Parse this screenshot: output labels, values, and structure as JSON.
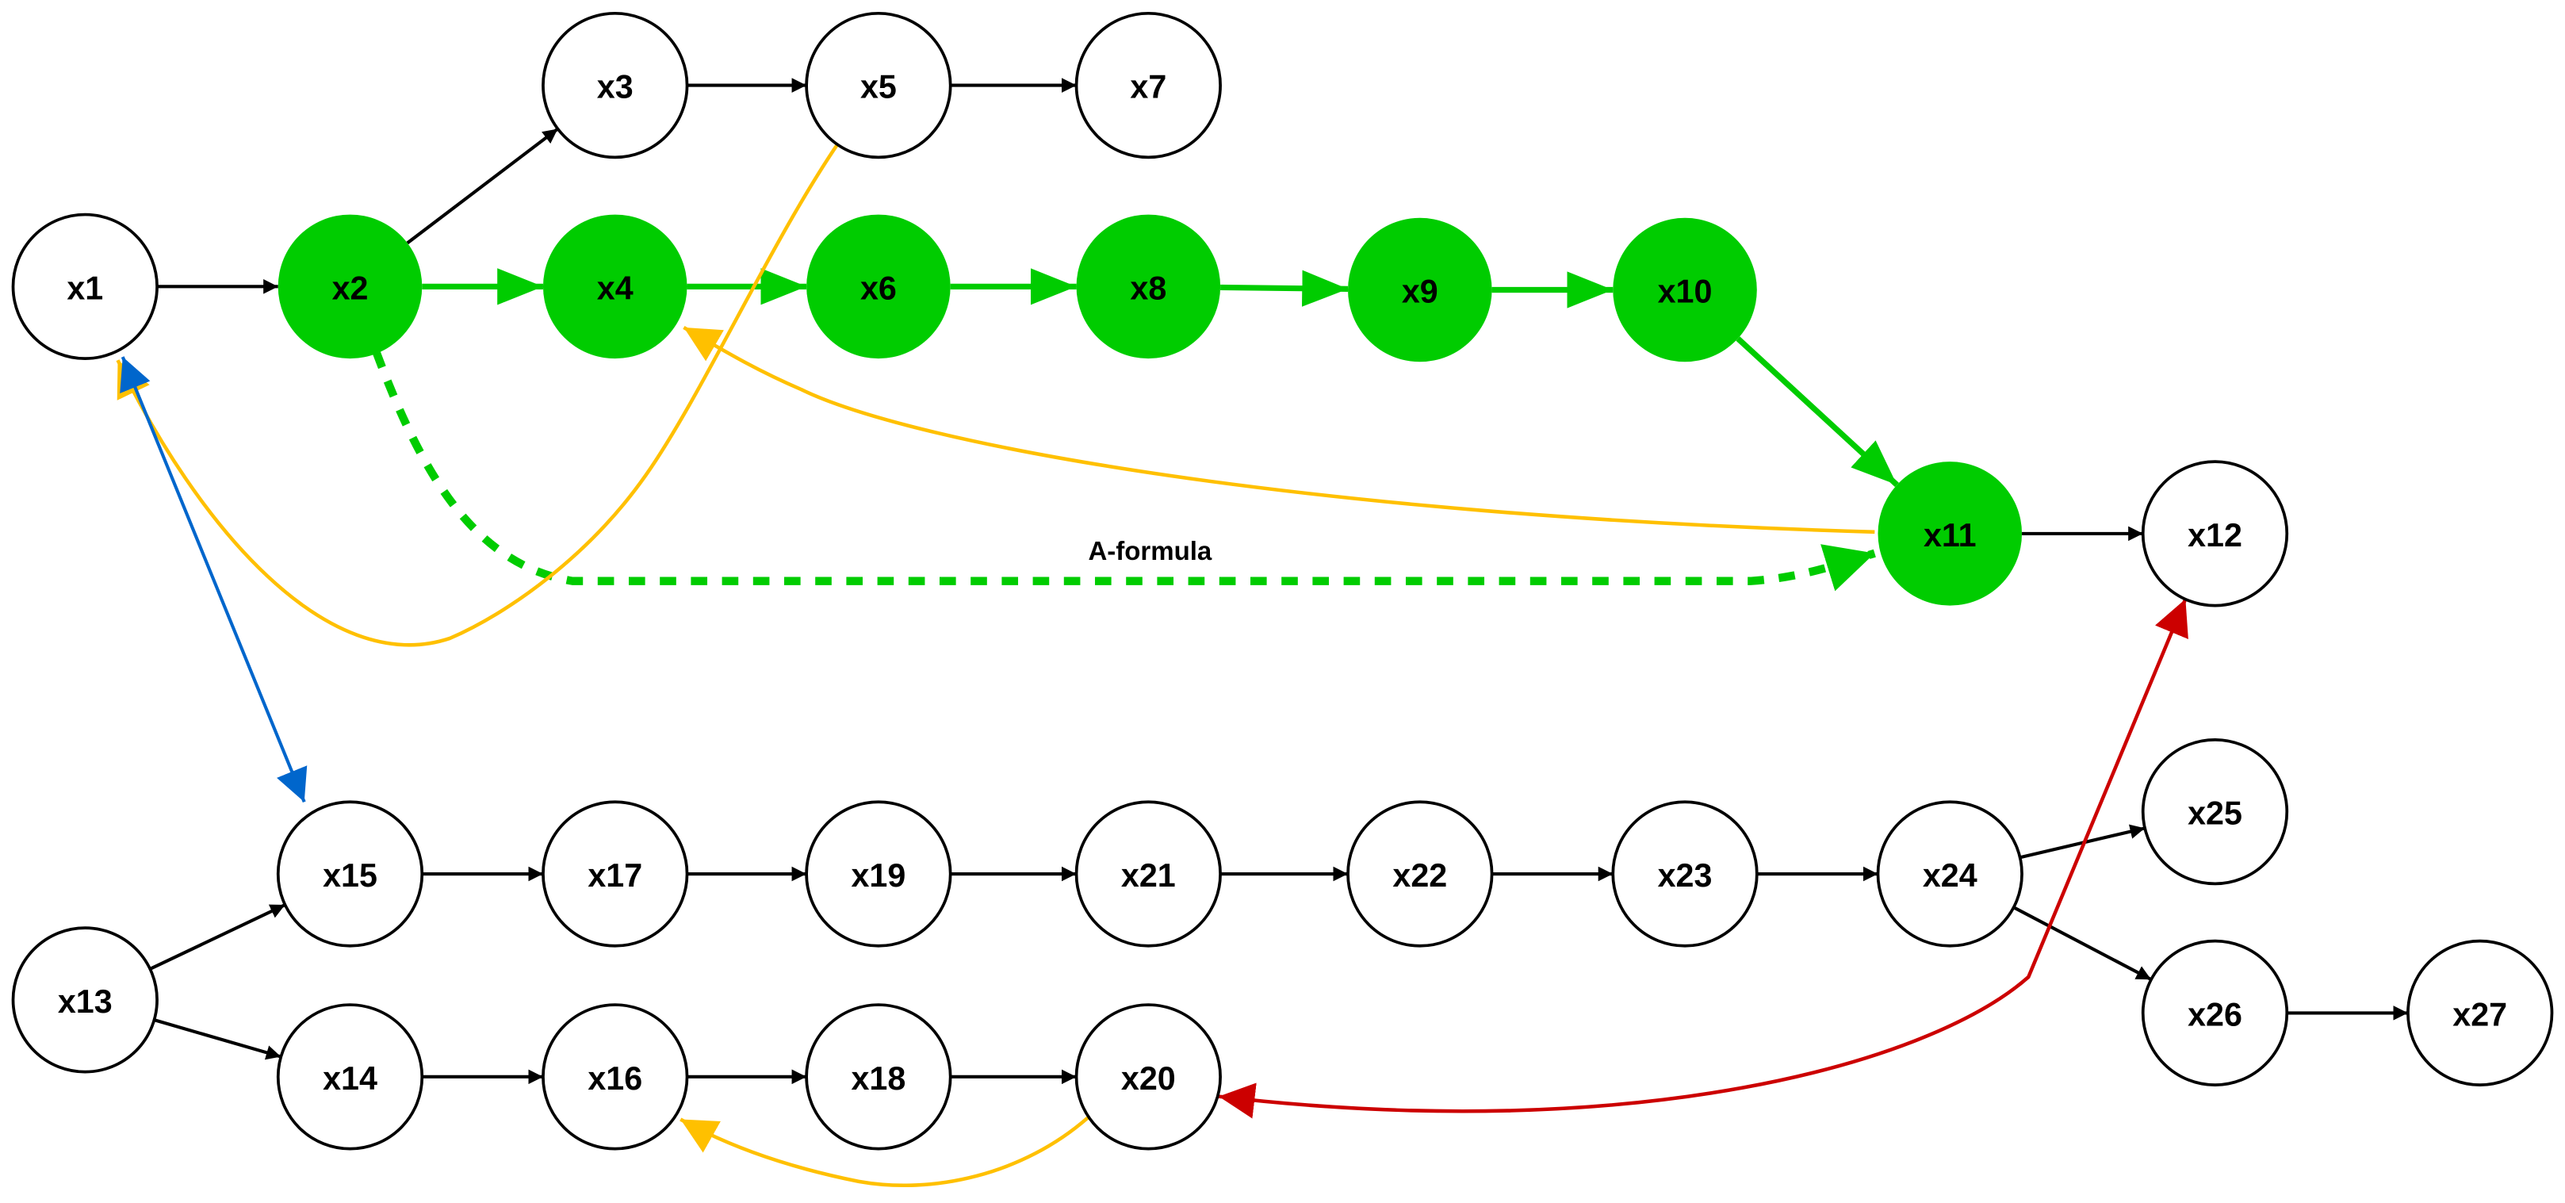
{
  "colors": {
    "node_default_fill": "#ffffff",
    "node_highlight_fill": "#00cc00",
    "edge_default": "#000000",
    "edge_highlight": "#00cc00",
    "edge_feedback": "#ffc000",
    "edge_bidirectional": "#0066cc",
    "edge_cross": "#cc0000"
  },
  "nodes": [
    {
      "id": "x1",
      "label": "x1",
      "highlighted": false
    },
    {
      "id": "x2",
      "label": "x2",
      "highlighted": true
    },
    {
      "id": "x3",
      "label": "x3",
      "highlighted": false
    },
    {
      "id": "x4",
      "label": "x4",
      "highlighted": true
    },
    {
      "id": "x5",
      "label": "x5",
      "highlighted": false
    },
    {
      "id": "x6",
      "label": "x6",
      "highlighted": true
    },
    {
      "id": "x7",
      "label": "x7",
      "highlighted": false
    },
    {
      "id": "x8",
      "label": "x8",
      "highlighted": true
    },
    {
      "id": "x9",
      "label": "x9",
      "highlighted": true
    },
    {
      "id": "x10",
      "label": "x10",
      "highlighted": true
    },
    {
      "id": "x11",
      "label": "x11",
      "highlighted": true
    },
    {
      "id": "x12",
      "label": "x12",
      "highlighted": false
    },
    {
      "id": "x13",
      "label": "x13",
      "highlighted": false
    },
    {
      "id": "x14",
      "label": "x14",
      "highlighted": false
    },
    {
      "id": "x15",
      "label": "x15",
      "highlighted": false
    },
    {
      "id": "x16",
      "label": "x16",
      "highlighted": false
    },
    {
      "id": "x17",
      "label": "x17",
      "highlighted": false
    },
    {
      "id": "x18",
      "label": "x18",
      "highlighted": false
    },
    {
      "id": "x19",
      "label": "x19",
      "highlighted": false
    },
    {
      "id": "x20",
      "label": "x20",
      "highlighted": false
    },
    {
      "id": "x21",
      "label": "x21",
      "highlighted": false
    },
    {
      "id": "x22",
      "label": "x22",
      "highlighted": false
    },
    {
      "id": "x23",
      "label": "x23",
      "highlighted": false
    },
    {
      "id": "x24",
      "label": "x24",
      "highlighted": false
    },
    {
      "id": "x25",
      "label": "x25",
      "highlighted": false
    },
    {
      "id": "x26",
      "label": "x26",
      "highlighted": false
    },
    {
      "id": "x27",
      "label": "x27",
      "highlighted": false
    }
  ],
  "edges": [
    {
      "from": "x1",
      "to": "x2",
      "kind": "default"
    },
    {
      "from": "x2",
      "to": "x3",
      "kind": "default"
    },
    {
      "from": "x3",
      "to": "x5",
      "kind": "default"
    },
    {
      "from": "x5",
      "to": "x7",
      "kind": "default"
    },
    {
      "from": "x2",
      "to": "x4",
      "kind": "highlight"
    },
    {
      "from": "x4",
      "to": "x6",
      "kind": "highlight"
    },
    {
      "from": "x6",
      "to": "x8",
      "kind": "highlight"
    },
    {
      "from": "x8",
      "to": "x9",
      "kind": "highlight"
    },
    {
      "from": "x9",
      "to": "x10",
      "kind": "highlight"
    },
    {
      "from": "x10",
      "to": "x11",
      "kind": "highlight"
    },
    {
      "from": "x11",
      "to": "x12",
      "kind": "default"
    },
    {
      "from": "x13",
      "to": "x15",
      "kind": "default"
    },
    {
      "from": "x13",
      "to": "x14",
      "kind": "default"
    },
    {
      "from": "x15",
      "to": "x17",
      "kind": "default"
    },
    {
      "from": "x17",
      "to": "x19",
      "kind": "default"
    },
    {
      "from": "x19",
      "to": "x21",
      "kind": "default"
    },
    {
      "from": "x21",
      "to": "x22",
      "kind": "default"
    },
    {
      "from": "x22",
      "to": "x23",
      "kind": "default"
    },
    {
      "from": "x23",
      "to": "x24",
      "kind": "default"
    },
    {
      "from": "x24",
      "to": "x25",
      "kind": "default"
    },
    {
      "from": "x24",
      "to": "x26",
      "kind": "default"
    },
    {
      "from": "x26",
      "to": "x27",
      "kind": "default"
    },
    {
      "from": "x14",
      "to": "x16",
      "kind": "default"
    },
    {
      "from": "x16",
      "to": "x18",
      "kind": "default"
    },
    {
      "from": "x18",
      "to": "x20",
      "kind": "default"
    }
  ],
  "curved_edges": [
    {
      "id": "x2-x11-formula",
      "from": "x2",
      "to": "x11",
      "kind": "highlight-dashed",
      "label": "A-formula"
    },
    {
      "id": "x5-x1",
      "from": "x5",
      "to": "x1",
      "kind": "feedback"
    },
    {
      "id": "x11-x4",
      "from": "x11",
      "to": "x4",
      "kind": "feedback"
    },
    {
      "id": "x20-x16",
      "from": "x20",
      "to": "x16",
      "kind": "feedback"
    },
    {
      "id": "x1-x15",
      "from": "x1",
      "to": "x15",
      "kind": "bidirectional"
    },
    {
      "id": "x20-x12",
      "from": "x20",
      "to": "x12",
      "kind": "cross-bidirectional"
    }
  ]
}
